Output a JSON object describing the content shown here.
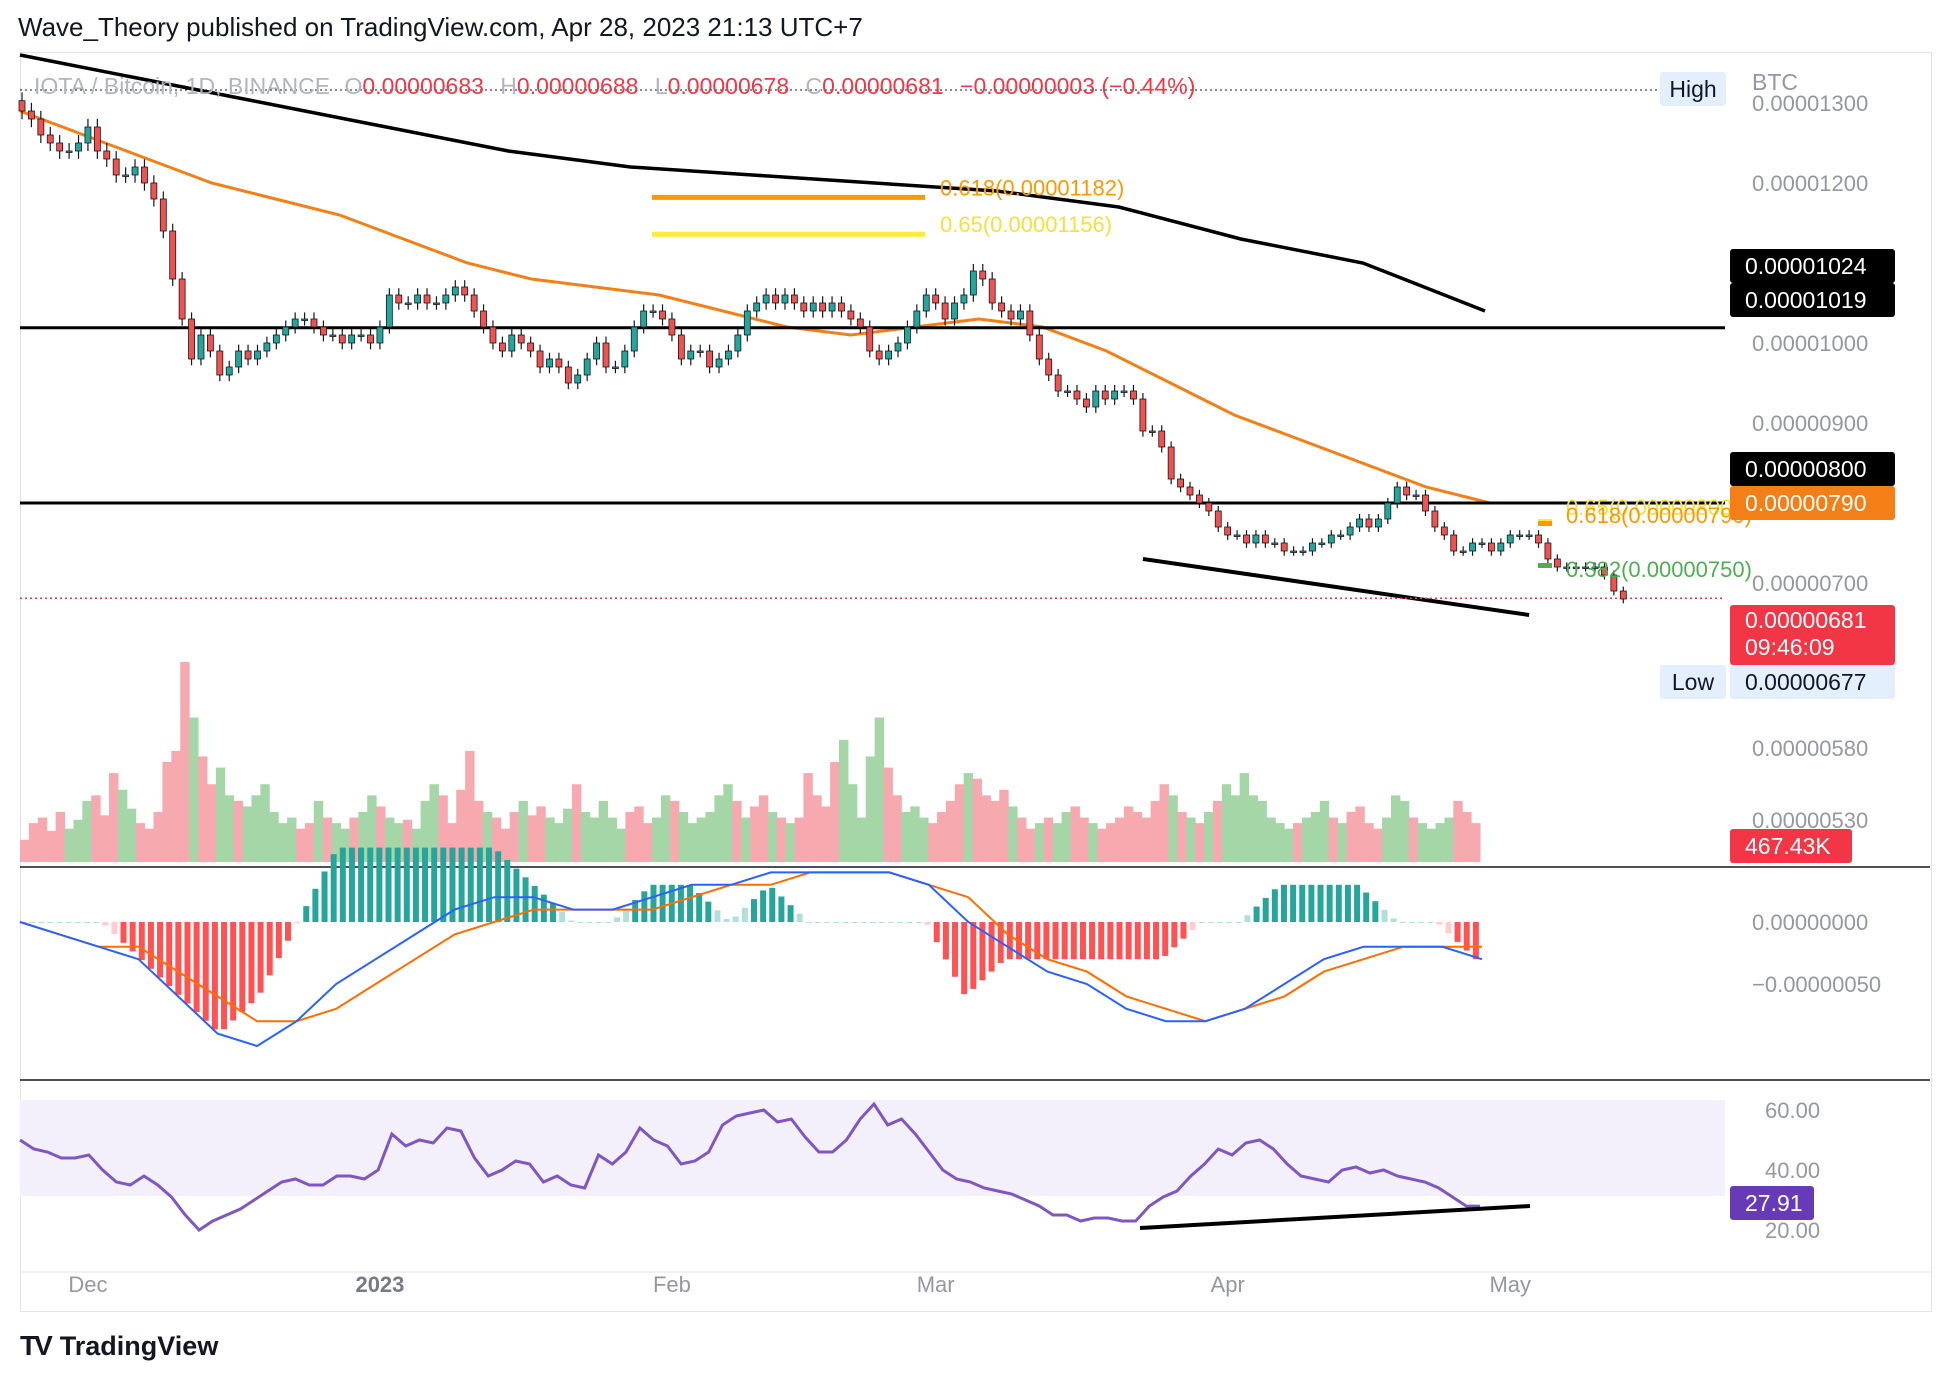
{
  "header": {
    "text": "Wave_Theory published on TradingView.com, Apr 28, 2023 21:13 UTC+7"
  },
  "footer": {
    "brand": "TradingView",
    "logo_glyph": "TV"
  },
  "legend": {
    "symbol": "IOTA / Bitcoin, 1D, BINANCE",
    "o_label": "O",
    "o_value": "0.00000683",
    "h_label": "H",
    "h_value": "0.00000688",
    "l_label": "L",
    "l_value": "0.00000678",
    "c_label": "C",
    "c_value": "0.00000681",
    "change": "−0.00000003 (−0.44%)"
  },
  "colors": {
    "up": "#26a69a",
    "down": "#ef5350",
    "ma50": "#f57f17",
    "ma200": "#000000",
    "macd_line": "#2962ff",
    "signal_line": "#ff6d00",
    "rsi": "#7e57c2",
    "hist_up_strong": "#26a69a",
    "hist_up_weak": "#b2dfdb",
    "hist_down_strong": "#ff5252",
    "hist_down_weak": "#ffcdd2",
    "vol_up": "#a5d6a7",
    "vol_down": "#f7a9b0",
    "fib_618": "#ff9800",
    "fib_65": "#ffeb3b",
    "fib_382": "#4caf50",
    "price_tag": "#f23645",
    "rsi_tag": "#673ab7",
    "orange_tag": "#f57f17"
  },
  "chart_data": [
    {
      "type": "candlestick",
      "name": "IOTA / Bitcoin",
      "timeframe": "1D",
      "exchange": "BINANCE",
      "currency": "BTC",
      "x_ticks": [
        "Dec",
        "2023",
        "Feb",
        "Mar",
        "Apr",
        "May"
      ],
      "y_ticks": [
        "0.00001300",
        "0.00001200",
        "0.00001100",
        "0.00001000",
        "0.00000900",
        "0.00000800",
        "0.00000700",
        "0.00000580",
        "0.00000530"
      ],
      "y_range": [
        5.05e-06,
        1.305e-05
      ],
      "first_date": "2022-11-24",
      "last_date": "2023-04-28",
      "closes": [
        1.29e-05,
        1.28e-05,
        1.26e-05,
        1.25e-05,
        1.24e-05,
        1.24e-05,
        1.25e-05,
        1.27e-05,
        1.24e-05,
        1.23e-05,
        1.21e-05,
        1.21e-05,
        1.22e-05,
        1.2e-05,
        1.18e-05,
        1.14e-05,
        1.08e-05,
        1.03e-05,
        9.8e-06,
        1.01e-05,
        9.9e-06,
        9.6e-06,
        9.7e-06,
        9.9e-06,
        9.8e-06,
        9.9e-06,
        1e-05,
        1.01e-05,
        1.02e-05,
        1.03e-05,
        1.03e-05,
        1.02e-05,
        1.01e-05,
        1.01e-05,
        1e-05,
        1.01e-05,
        1.01e-05,
        1e-05,
        1.02e-05,
        1.06e-05,
        1.05e-05,
        1.05e-05,
        1.06e-05,
        1.05e-05,
        1.05e-05,
        1.06e-05,
        1.07e-05,
        1.06e-05,
        1.04e-05,
        1.02e-05,
        1e-05,
        9.9e-06,
        1.01e-05,
        1e-05,
        9.9e-06,
        9.7e-06,
        9.8e-06,
        9.7e-06,
        9.5e-06,
        9.6e-06,
        9.8e-06,
        1e-05,
        9.7e-06,
        9.7e-06,
        9.9e-06,
        1.02e-05,
        1.04e-05,
        1.04e-05,
        1.03e-05,
        1.01e-05,
        9.8e-06,
        9.9e-06,
        9.9e-06,
        9.7e-06,
        9.8e-06,
        9.9e-06,
        1.01e-05,
        1.04e-05,
        1.05e-05,
        1.06e-05,
        1.05e-05,
        1.06e-05,
        1.05e-05,
        1.04e-05,
        1.05e-05,
        1.04e-05,
        1.05e-05,
        1.04e-05,
        1.03e-05,
        1.02e-05,
        9.9e-06,
        9.8e-06,
        9.9e-06,
        1e-05,
        1.02e-05,
        1.04e-05,
        1.06e-05,
        1.05e-05,
        1.03e-05,
        1.05e-05,
        1.06e-05,
        1.09e-05,
        1.08e-05,
        1.05e-05,
        1.04e-05,
        1.03e-05,
        1.04e-05,
        1.01e-05,
        9.8e-06,
        9.6e-06,
        9.4e-06,
        9.4e-06,
        9.3e-06,
        9.2e-06,
        9.4e-06,
        9.3e-06,
        9.4e-06,
        9.4e-06,
        9.3e-06,
        8.9e-06,
        8.9e-06,
        8.7e-06,
        8.3e-06,
        8.2e-06,
        8.1e-06,
        8e-06,
        7.9e-06,
        7.7e-06,
        7.6e-06,
        7.6e-06,
        7.5e-06,
        7.6e-06,
        7.5e-06,
        7.5e-06,
        7.4e-06,
        7.4e-06,
        7.4e-06,
        7.5e-06,
        7.5e-06,
        7.6e-06,
        7.6e-06,
        7.7e-06,
        7.8e-06,
        7.7e-06,
        7.8e-06,
        8e-06,
        8.2e-06,
        8.1e-06,
        8.1e-06,
        7.9e-06,
        7.7e-06,
        7.6e-06,
        7.4e-06,
        7.4e-06,
        7.5e-06,
        7.5e-06,
        7.4e-06,
        7.5e-06,
        7.6e-06,
        7.6e-06,
        7.6e-06,
        7.5e-06,
        7.3e-06,
        7.2e-06,
        7.2e-06,
        7.2e-06,
        7.2e-06,
        7.2e-06,
        7.1e-06,
        6.9e-06,
        6.8e-06
      ],
      "ma50": [
        1.29e-05,
        1.26e-05,
        1.23e-05,
        1.2e-05,
        1.18e-05,
        1.16e-05,
        1.13e-05,
        1.1e-05,
        1.08e-05,
        1.07e-05,
        1.06e-05,
        1.04e-05,
        1.02e-05,
        1.01e-05,
        1.02e-05,
        1.03e-05,
        1.02e-05,
        9.9e-06,
        9.5e-06,
        9.1e-06,
        8.8e-06,
        8.5e-06,
        8.2e-06,
        8e-06
      ],
      "ma200": [
        1.36e-05,
        1.33e-05,
        1.3e-05,
        1.27e-05,
        1.24e-05,
        1.22e-05,
        1.21e-05,
        1.2e-05,
        1.19e-05,
        1.17e-05,
        1.13e-05,
        1.1e-05,
        1.04e-05
      ],
      "support_levels": [
        1.024e-05,
        8e-06
      ],
      "trendline": {
        "from": [
          "2023-03-23",
          7.3e-06
        ],
        "to": [
          "2023-05-03",
          6.6e-06
        ]
      },
      "fib_levels": [
        {
          "label": "0.618(0.00001182)",
          "value": 1.182e-05
        },
        {
          "label": "0.65(0.00001156)",
          "value": 1.156e-05
        },
        {
          "label": "0.65(0.00000800)",
          "value": 8e-06
        },
        {
          "label": "0.618(0.00000790)",
          "value": 7.9e-06
        },
        {
          "label": "0.382(0.00000750)",
          "value": 7.5e-06
        }
      ],
      "high_label": "High",
      "low_label": "Low",
      "price_tags": [
        {
          "text": "0.00001024",
          "value": 1.024e-05
        },
        {
          "text": "0.00001019",
          "value": 1.019e-05
        },
        {
          "text": "0.00000800",
          "value": 8e-06
        },
        {
          "text": "0.00000790",
          "value": 7.9e-06
        },
        {
          "text": "0.00000681",
          "value": 6.81e-06
        },
        {
          "text": "0.00000677",
          "value": 6.77e-06
        }
      ],
      "countdown": "09:46:09"
    },
    {
      "type": "area",
      "name": "Volume",
      "last_value": "467.43K",
      "values": [
        20,
        35,
        40,
        28,
        45,
        30,
        38,
        55,
        60,
        42,
        80,
        65,
        48,
        35,
        30,
        45,
        90,
        100,
        180,
        130,
        95,
        70,
        85,
        60,
        55,
        50,
        60,
        70,
        45,
        35,
        40,
        30,
        35,
        55,
        40,
        35,
        30,
        40,
        45,
        60,
        50,
        40,
        35,
        38,
        30,
        55,
        70,
        60,
        35,
        65,
        100,
        55,
        45,
        40,
        30,
        45,
        55,
        42,
        50,
        40,
        35,
        48,
        70,
        45,
        40,
        55,
        40,
        30,
        45,
        50,
        35,
        40,
        60,
        55,
        45,
        35,
        40,
        45,
        60,
        70,
        55,
        40,
        50,
        60,
        45,
        40,
        35,
        40,
        80,
        60,
        50,
        90,
        110,
        70,
        40,
        95,
        130,
        85,
        60,
        45,
        50,
        40,
        35,
        45,
        55,
        70,
        80,
        75,
        60,
        55,
        65,
        50,
        40,
        30,
        35,
        40,
        35,
        45,
        50,
        40,
        35,
        30,
        35,
        40,
        50,
        45,
        40,
        55,
        70,
        60,
        45,
        40,
        35,
        45,
        55,
        70,
        60,
        80,
        60,
        55,
        40,
        35,
        30,
        35,
        40,
        45,
        55,
        40,
        35,
        45,
        50,
        35,
        30,
        40,
        60,
        55,
        40,
        35,
        30,
        35,
        40,
        55,
        45,
        35
      ]
    },
    {
      "type": "line",
      "name": "MACD",
      "y_ticks": [
        "0.00000000",
        "−0.00000050"
      ],
      "macd": [
        0.0,
        -1e-07,
        -2e-07,
        -3e-07,
        -6e-07,
        -9e-07,
        -1e-06,
        -8e-07,
        -5e-07,
        -3e-07,
        -1e-07,
        1e-07,
        2e-07,
        2e-07,
        1e-07,
        1e-07,
        2e-07,
        3e-07,
        3e-07,
        4e-07,
        4e-07,
        4e-07,
        4e-07,
        3e-07,
        0.0,
        -2e-07,
        -4e-07,
        -5e-07,
        -7e-07,
        -8e-07,
        -8e-07,
        -7e-07,
        -5e-07,
        -3e-07,
        -2e-07,
        -2e-07,
        -2e-07,
        -3e-07
      ],
      "signal": [
        0.0,
        -1e-07,
        -2e-07,
        -2e-07,
        -4e-07,
        -6e-07,
        -8e-07,
        -8e-07,
        -7e-07,
        -5e-07,
        -3e-07,
        -1e-07,
        0.0,
        1e-07,
        1e-07,
        1e-07,
        1e-07,
        2e-07,
        3e-07,
        3e-07,
        4e-07,
        4e-07,
        4e-07,
        3e-07,
        2e-07,
        -1e-07,
        -3e-07,
        -4e-07,
        -6e-07,
        -7e-07,
        -8e-07,
        -7e-07,
        -6e-07,
        -4e-07,
        -3e-07,
        -2e-07,
        -2e-07,
        -2e-07
      ]
    },
    {
      "type": "line",
      "name": "RSI",
      "y_ticks": [
        "60.00",
        "40.00",
        "20.00"
      ],
      "y_range": [
        14,
        67
      ],
      "last_value": "27.91",
      "values": [
        50,
        47,
        46,
        44,
        44,
        45,
        40,
        36,
        35,
        38,
        35,
        31,
        25,
        20,
        23,
        25,
        27,
        30,
        33,
        36,
        37,
        35,
        35,
        38,
        38,
        37,
        40,
        52,
        48,
        50,
        49,
        54,
        53,
        44,
        38,
        40,
        43,
        42,
        36,
        38,
        35,
        34,
        45,
        42,
        46,
        54,
        50,
        48,
        42,
        43,
        46,
        55,
        58,
        59,
        60,
        56,
        57,
        51,
        46,
        46,
        50,
        57,
        62,
        55,
        57,
        52,
        46,
        40,
        37,
        36,
        34,
        33,
        32,
        30,
        28,
        25,
        25,
        23,
        24,
        24,
        23,
        23,
        28,
        31,
        33,
        38,
        42,
        47,
        45,
        49,
        50,
        47,
        42,
        38,
        37,
        36,
        40,
        41,
        39,
        40,
        38,
        37,
        36,
        34,
        31,
        28,
        27.91
      ]
    }
  ]
}
